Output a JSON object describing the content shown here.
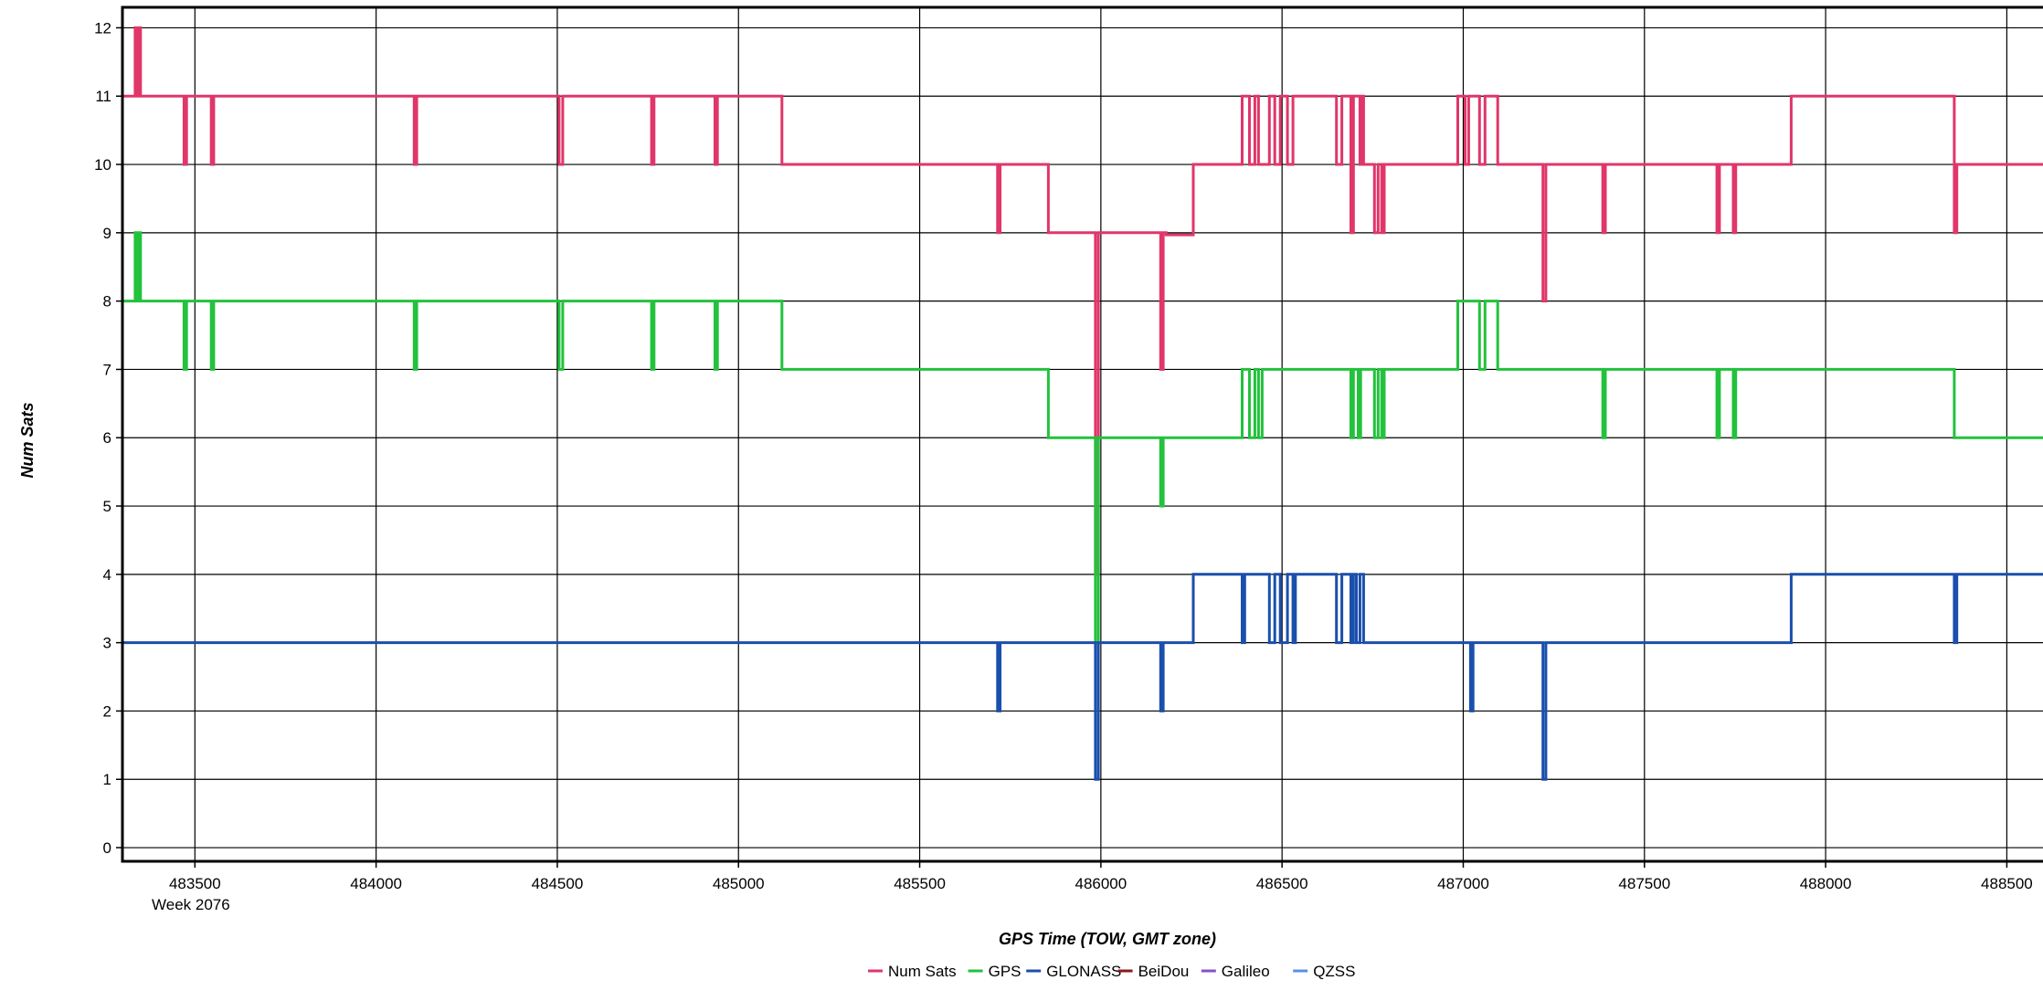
{
  "chart_data": {
    "type": "line",
    "title": "",
    "xlabel": "GPS Time (TOW, GMT zone)",
    "ylabel": "Num Sats",
    "x_sublabel": "Week 2076",
    "xlim": [
      483300,
      488620
    ],
    "ylim": [
      -0.2,
      12.3
    ],
    "xticks": [
      483500,
      484000,
      484500,
      485000,
      485500,
      486000,
      486500,
      487000,
      487500,
      488000,
      488500
    ],
    "yticks": [
      0,
      1,
      2,
      3,
      4,
      5,
      6,
      7,
      8,
      9,
      10,
      11,
      12
    ],
    "grid": true,
    "legend_position": "bottom",
    "series": [
      {
        "name": "Num Sats",
        "color": "#e0366a",
        "points": [
          [
            483300,
            10
          ],
          [
            483300,
            11
          ],
          [
            483335,
            11
          ],
          [
            483335,
            12
          ],
          [
            483340,
            12
          ],
          [
            483340,
            11
          ],
          [
            483345,
            11
          ],
          [
            483345,
            12
          ],
          [
            483350,
            12
          ],
          [
            483350,
            11
          ],
          [
            483470,
            11
          ],
          [
            483470,
            10
          ],
          [
            483477,
            10
          ],
          [
            483477,
            11
          ],
          [
            483545,
            11
          ],
          [
            483545,
            10
          ],
          [
            483552,
            10
          ],
          [
            483552,
            11
          ],
          [
            484105,
            11
          ],
          [
            484105,
            10
          ],
          [
            484112,
            10
          ],
          [
            484112,
            11
          ],
          [
            484505,
            11
          ],
          [
            484505,
            10
          ],
          [
            484515,
            10
          ],
          [
            484515,
            11
          ],
          [
            484760,
            11
          ],
          [
            484760,
            10
          ],
          [
            484767,
            10
          ],
          [
            484767,
            11
          ],
          [
            484935,
            11
          ],
          [
            484935,
            10
          ],
          [
            484942,
            10
          ],
          [
            484942,
            11
          ],
          [
            485120,
            11
          ],
          [
            485120,
            10
          ],
          [
            485715,
            10
          ],
          [
            485715,
            9
          ],
          [
            485722,
            9
          ],
          [
            485722,
            10
          ],
          [
            485855,
            10
          ],
          [
            485855,
            9
          ],
          [
            485985,
            9
          ],
          [
            485985,
            4
          ],
          [
            485993,
            4
          ],
          [
            485993,
            9
          ],
          [
            486165,
            9
          ],
          [
            486165,
            7
          ],
          [
            486172,
            7
          ],
          [
            486172,
            9
          ],
          [
            486180,
            9
          ],
          [
            486180,
            8.97
          ],
          [
            486255,
            8.97
          ],
          [
            486255,
            10
          ],
          [
            486390,
            10
          ],
          [
            486390,
            11
          ],
          [
            486410,
            11
          ],
          [
            486410,
            10
          ],
          [
            486425,
            10
          ],
          [
            486425,
            11
          ],
          [
            486435,
            11
          ],
          [
            486435,
            10
          ],
          [
            486465,
            10
          ],
          [
            486465,
            11
          ],
          [
            486480,
            11
          ],
          [
            486480,
            10
          ],
          [
            486495,
            10
          ],
          [
            486495,
            11
          ],
          [
            486515,
            11
          ],
          [
            486515,
            10
          ],
          [
            486530,
            10
          ],
          [
            486530,
            11
          ],
          [
            486650,
            11
          ],
          [
            486650,
            10
          ],
          [
            486665,
            10
          ],
          [
            486665,
            11
          ],
          [
            486690,
            11
          ],
          [
            486690,
            9
          ],
          [
            486697,
            9
          ],
          [
            486697,
            11
          ],
          [
            486715,
            11
          ],
          [
            486715,
            10
          ],
          [
            486720,
            10
          ],
          [
            486720,
            11
          ],
          [
            486725,
            11
          ],
          [
            486725,
            10
          ],
          [
            486755,
            10
          ],
          [
            486755,
            9
          ],
          [
            486765,
            9
          ],
          [
            486765,
            10
          ],
          [
            486775,
            10
          ],
          [
            486775,
            9
          ],
          [
            486782,
            9
          ],
          [
            486782,
            10
          ],
          [
            486985,
            10
          ],
          [
            486985,
            11
          ],
          [
            487005,
            11
          ],
          [
            487005,
            10
          ],
          [
            487015,
            10
          ],
          [
            487015,
            11
          ],
          [
            487045,
            11
          ],
          [
            487045,
            10
          ],
          [
            487060,
            10
          ],
          [
            487060,
            11
          ],
          [
            487095,
            11
          ],
          [
            487095,
            10
          ],
          [
            487220,
            10
          ],
          [
            487220,
            8
          ],
          [
            487228,
            8
          ],
          [
            487228,
            10
          ],
          [
            487385,
            10
          ],
          [
            487385,
            9
          ],
          [
            487392,
            9
          ],
          [
            487392,
            10
          ],
          [
            487700,
            10
          ],
          [
            487700,
            9
          ],
          [
            487707,
            9
          ],
          [
            487707,
            10
          ],
          [
            487745,
            10
          ],
          [
            487745,
            9
          ],
          [
            487752,
            9
          ],
          [
            487752,
            10
          ],
          [
            487905,
            10
          ],
          [
            487905,
            11
          ],
          [
            488355,
            11
          ],
          [
            488355,
            9
          ],
          [
            488362,
            9
          ],
          [
            488362,
            10
          ],
          [
            488620,
            10
          ]
        ]
      },
      {
        "name": "GPS",
        "color": "#22c23c",
        "points": [
          [
            483300,
            7
          ],
          [
            483300,
            8
          ],
          [
            483335,
            8
          ],
          [
            483335,
            9
          ],
          [
            483340,
            9
          ],
          [
            483340,
            8
          ],
          [
            483345,
            8
          ],
          [
            483345,
            9
          ],
          [
            483350,
            9
          ],
          [
            483350,
            8
          ],
          [
            483470,
            8
          ],
          [
            483470,
            7
          ],
          [
            483477,
            7
          ],
          [
            483477,
            8
          ],
          [
            483545,
            8
          ],
          [
            483545,
            7
          ],
          [
            483552,
            7
          ],
          [
            483552,
            8
          ],
          [
            484105,
            8
          ],
          [
            484105,
            7
          ],
          [
            484112,
            7
          ],
          [
            484112,
            8
          ],
          [
            484505,
            8
          ],
          [
            484505,
            7
          ],
          [
            484515,
            7
          ],
          [
            484515,
            8
          ],
          [
            484760,
            8
          ],
          [
            484760,
            7
          ],
          [
            484767,
            7
          ],
          [
            484767,
            8
          ],
          [
            484935,
            8
          ],
          [
            484935,
            7
          ],
          [
            484942,
            7
          ],
          [
            484942,
            8
          ],
          [
            485120,
            8
          ],
          [
            485120,
            7
          ],
          [
            485855,
            7
          ],
          [
            485855,
            6
          ],
          [
            485985,
            6
          ],
          [
            485985,
            3
          ],
          [
            485993,
            3
          ],
          [
            485993,
            6
          ],
          [
            486165,
            6
          ],
          [
            486165,
            5
          ],
          [
            486172,
            5
          ],
          [
            486172,
            6
          ],
          [
            486390,
            6
          ],
          [
            486390,
            7
          ],
          [
            486410,
            7
          ],
          [
            486410,
            6
          ],
          [
            486425,
            6
          ],
          [
            486425,
            7
          ],
          [
            486435,
            7
          ],
          [
            486435,
            6
          ],
          [
            486445,
            6
          ],
          [
            486445,
            7
          ],
          [
            486690,
            7
          ],
          [
            486690,
            6
          ],
          [
            486697,
            6
          ],
          [
            486697,
            7
          ],
          [
            486710,
            7
          ],
          [
            486710,
            6
          ],
          [
            486717,
            6
          ],
          [
            486717,
            7
          ],
          [
            486755,
            7
          ],
          [
            486755,
            6
          ],
          [
            486765,
            6
          ],
          [
            486765,
            7
          ],
          [
            486775,
            7
          ],
          [
            486775,
            6
          ],
          [
            486782,
            6
          ],
          [
            486782,
            7
          ],
          [
            486985,
            7
          ],
          [
            486985,
            8
          ],
          [
            487045,
            8
          ],
          [
            487045,
            7
          ],
          [
            487060,
            7
          ],
          [
            487060,
            8
          ],
          [
            487095,
            8
          ],
          [
            487095,
            7
          ],
          [
            487385,
            7
          ],
          [
            487385,
            6
          ],
          [
            487392,
            6
          ],
          [
            487392,
            7
          ],
          [
            487700,
            7
          ],
          [
            487700,
            6
          ],
          [
            487707,
            6
          ],
          [
            487707,
            7
          ],
          [
            487745,
            7
          ],
          [
            487745,
            6
          ],
          [
            487752,
            6
          ],
          [
            487752,
            7
          ],
          [
            488355,
            7
          ],
          [
            488355,
            6
          ],
          [
            488620,
            6
          ]
        ]
      },
      {
        "name": "GLONASS",
        "color": "#1a4fad",
        "points": [
          [
            483300,
            3
          ],
          [
            485715,
            3
          ],
          [
            485715,
            2
          ],
          [
            485722,
            2
          ],
          [
            485722,
            3
          ],
          [
            485985,
            3
          ],
          [
            485985,
            1
          ],
          [
            485993,
            1
          ],
          [
            485993,
            3
          ],
          [
            486165,
            3
          ],
          [
            486165,
            2
          ],
          [
            486172,
            2
          ],
          [
            486172,
            3
          ],
          [
            486255,
            3
          ],
          [
            486255,
            4
          ],
          [
            486390,
            4
          ],
          [
            486390,
            3
          ],
          [
            486397,
            3
          ],
          [
            486397,
            4
          ],
          [
            486465,
            4
          ],
          [
            486465,
            3
          ],
          [
            486480,
            3
          ],
          [
            486480,
            4
          ],
          [
            486495,
            4
          ],
          [
            486495,
            3
          ],
          [
            486515,
            3
          ],
          [
            486515,
            4
          ],
          [
            486530,
            4
          ],
          [
            486530,
            3
          ],
          [
            486537,
            3
          ],
          [
            486537,
            4
          ],
          [
            486650,
            4
          ],
          [
            486650,
            3
          ],
          [
            486665,
            3
          ],
          [
            486665,
            4
          ],
          [
            486690,
            4
          ],
          [
            486690,
            3
          ],
          [
            486697,
            3
          ],
          [
            486697,
            4
          ],
          [
            486705,
            4
          ],
          [
            486705,
            3
          ],
          [
            486715,
            3
          ],
          [
            486715,
            4
          ],
          [
            486725,
            4
          ],
          [
            486725,
            3
          ],
          [
            487020,
            3
          ],
          [
            487020,
            2
          ],
          [
            487027,
            2
          ],
          [
            487027,
            3
          ],
          [
            487220,
            3
          ],
          [
            487220,
            1
          ],
          [
            487228,
            1
          ],
          [
            487228,
            3
          ],
          [
            487905,
            3
          ],
          [
            487905,
            4
          ],
          [
            488355,
            4
          ],
          [
            488355,
            3
          ],
          [
            488362,
            3
          ],
          [
            488362,
            4
          ],
          [
            488620,
            4
          ]
        ]
      },
      {
        "name": "BeiDou",
        "color": "#8b1a1a",
        "points": []
      },
      {
        "name": "Galileo",
        "color": "#8a4fc8",
        "points": []
      },
      {
        "name": "QZSS",
        "color": "#5b8fe6",
        "points": []
      }
    ]
  }
}
